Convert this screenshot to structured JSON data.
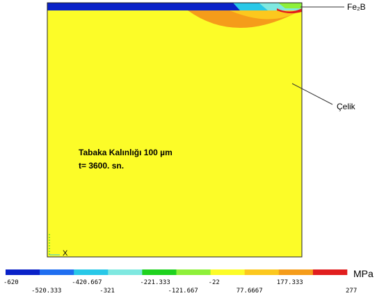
{
  "annotations": {
    "coating": "Fe₂B",
    "steel": "Çelik"
  },
  "info": {
    "line1": "Tabaka Kalınlığı 100 µm",
    "line2": "t= 3600. sn."
  },
  "axis": {
    "x_label": "X"
  },
  "legend": {
    "unit": "MPa",
    "colors": [
      "#0a22c8",
      "#1f6ef0",
      "#28c8e8",
      "#7fe8e0",
      "#1ed21e",
      "#8ef03a",
      "#fcfc28",
      "#fcc81e",
      "#f59c1a",
      "#e11e1e"
    ],
    "ticks_top": [
      "-620",
      "-420.667",
      "-221.333",
      "-22",
      "177.333"
    ],
    "ticks_bottom": [
      "-520.333",
      "-321",
      "-121.667",
      "77.6667",
      "277"
    ]
  }
}
